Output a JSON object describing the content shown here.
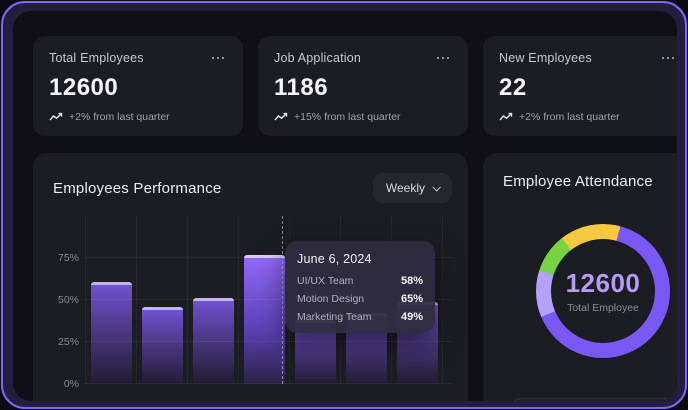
{
  "colors": {
    "frame_border": "#7d68f7",
    "frame_margin_bg": "#241e3e",
    "panel_bg": "#0f0f15",
    "card_bg": "#1c1c23",
    "bar_purple": "#6f52cf",
    "bar_highlight": "#9168f7",
    "donut_purple": "#7a58f6",
    "donut_lavender": "#b4a1f8",
    "donut_green": "#77d33f",
    "donut_yellow": "#f7c940",
    "center_value_text": "#b29cf5"
  },
  "icons": {
    "kebab_menu": "three-dots",
    "trend_up": "zigzag-up-arrow",
    "chevron_down": "v"
  },
  "stat_cards": [
    {
      "title": "Total Employees",
      "value": "12600",
      "trend": "+2% from last quarter"
    },
    {
      "title": "Job Application",
      "value": "1186",
      "trend": "+15% from last quarter"
    },
    {
      "title": "New Employees",
      "value": "22",
      "trend": "+2% from last quarter"
    }
  ],
  "performance": {
    "title": "Employees Performance",
    "period_button": "Weekly"
  },
  "attendance": {
    "title": "Employee Attendance",
    "center_value": "12600",
    "center_label": "Total Employee"
  },
  "chart_data": [
    {
      "type": "bar",
      "title": "Employees Performance",
      "period": "Weekly",
      "categories": [
        "",
        "",
        "",
        "",
        "",
        "",
        ""
      ],
      "values": [
        61,
        46,
        51,
        77,
        38,
        42,
        49
      ],
      "highlighted_index": 3,
      "ytick_labels": [
        "0%",
        "25%",
        "50%",
        "75%"
      ],
      "ylim": [
        0,
        100
      ],
      "grid": true,
      "x_labels_visible": false,
      "tooltip": {
        "date": "June 6, 2024",
        "rows": [
          {
            "label": "UI/UX Team",
            "value": "58%"
          },
          {
            "label": "Motion Design",
            "value": "65%"
          },
          {
            "label": "Marketing Team",
            "value": "49%"
          }
        ]
      }
    },
    {
      "type": "pie",
      "subtype": "donut",
      "title": "Employee Attendance",
      "center_value": "12600",
      "center_label": "Total Employee",
      "start_angle_deg": 15,
      "segments": [
        {
          "name": "purple",
          "pct": 64.5,
          "color": "#7a58f6"
        },
        {
          "name": "lavender",
          "pct": 11.3,
          "color": "#b4a1f8"
        },
        {
          "name": "green",
          "pct": 9.5,
          "color": "#77d33f"
        },
        {
          "name": "yellow",
          "pct": 14.7,
          "color": "#f7c940"
        }
      ]
    }
  ]
}
